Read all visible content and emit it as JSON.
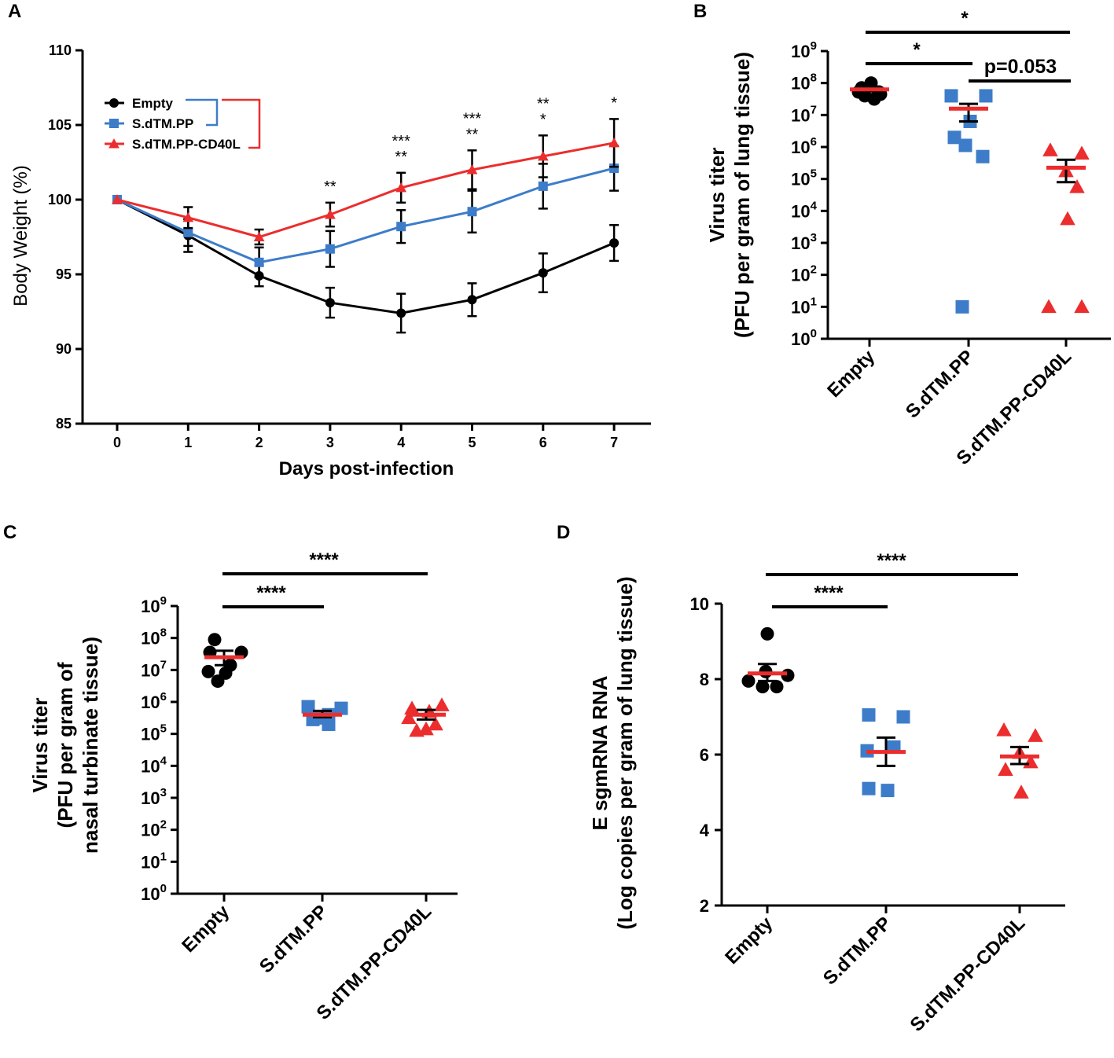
{
  "colors": {
    "black": "#000000",
    "blue": "#3D7CC9",
    "red": "#EC2D2D",
    "mean": "#EC2D2D"
  },
  "chart_data": [
    {
      "panel": "A",
      "type": "line",
      "xlabel": "Days post-infection",
      "ylabel": "Body Weight (%)",
      "ylim": [
        85,
        110
      ],
      "x": [
        0,
        1,
        2,
        3,
        4,
        5,
        6,
        7
      ],
      "x_ticks": [
        "0",
        "1",
        "2",
        "3",
        "4",
        "5",
        "6",
        "7"
      ],
      "y_ticks": [
        "85",
        "90",
        "95",
        "100",
        "105",
        "110"
      ],
      "legend": "top-left",
      "series": [
        {
          "name": "Empty",
          "color": "#000000",
          "marker": "circle",
          "values": [
            100,
            97.6,
            94.9,
            93.1,
            92.4,
            93.3,
            95.1,
            97.1
          ],
          "errors": [
            0,
            1.1,
            0.7,
            1.0,
            1.3,
            1.1,
            1.3,
            1.2
          ]
        },
        {
          "name": "S.dTM.PP",
          "color": "#3D7CC9",
          "marker": "square",
          "values": [
            100,
            97.8,
            95.8,
            96.7,
            98.2,
            99.2,
            100.9,
            102.1
          ],
          "errors": [
            0,
            0.9,
            1.0,
            1.2,
            1.1,
            1.4,
            1.5,
            1.5
          ]
        },
        {
          "name": "S.dTM.PP-CD40L",
          "color": "#EC2D2D",
          "marker": "triangle",
          "values": [
            100,
            98.8,
            97.5,
            99.0,
            100.8,
            102.0,
            102.9,
            103.8
          ],
          "errors": [
            0,
            0.7,
            0.5,
            0.8,
            1.0,
            1.3,
            1.4,
            1.6
          ]
        }
      ],
      "significance": [
        {
          "x": 3,
          "series": "S.dTM.PP-CD40L",
          "label": "**"
        },
        {
          "x": 4,
          "series": "S.dTM.PP-CD40L",
          "label": "***"
        },
        {
          "x": 4,
          "series": "S.dTM.PP",
          "label": "**"
        },
        {
          "x": 5,
          "series": "S.dTM.PP-CD40L",
          "label": "***"
        },
        {
          "x": 5,
          "series": "S.dTM.PP",
          "label": "**"
        },
        {
          "x": 6,
          "series": "S.dTM.PP-CD40L",
          "label": "**"
        },
        {
          "x": 6,
          "series": "S.dTM.PP",
          "label": "*"
        },
        {
          "x": 7,
          "series": "S.dTM.PP-CD40L",
          "label": "*"
        }
      ]
    },
    {
      "panel": "B",
      "type": "scatter",
      "scale": "log10",
      "ylabel": [
        "Virus titer",
        "(PFU per gram of lung tissue)"
      ],
      "ylim_exponent": [
        0,
        9
      ],
      "y_tick_exponents": [
        "0",
        "1",
        "2",
        "3",
        "4",
        "5",
        "6",
        "7",
        "8",
        "9"
      ],
      "categories": [
        "Empty",
        "S.dTM.PP",
        "S.dTM.PP-CD40L"
      ],
      "groups": [
        {
          "name": "Empty",
          "marker": "circle",
          "color": "#000000",
          "values_log10": [
            8.0,
            7.85,
            7.72,
            7.72,
            7.65,
            7.6,
            7.5
          ],
          "mean_log10": 7.8,
          "sem_low_log10": 7.74,
          "sem_high_log10": 7.88
        },
        {
          "name": "S.dTM.PP",
          "marker": "square",
          "color": "#3D7CC9",
          "values_log10": [
            7.6,
            7.6,
            6.8,
            6.3,
            6.05,
            5.7,
            1.0
          ],
          "mean_log10": 7.2,
          "sem_low_log10": 6.8,
          "sem_high_log10": 7.35
        },
        {
          "name": "S.dTM.PP-CD40L",
          "marker": "triangle",
          "color": "#EC2D2D",
          "values_log10": [
            5.9,
            5.8,
            5.25,
            4.75,
            3.75,
            1.0,
            1.0
          ],
          "mean_log10": 5.35,
          "sem_low_log10": 4.9,
          "sem_high_log10": 5.6
        }
      ],
      "brackets": [
        {
          "from": "Empty",
          "to": "S.dTM.PP",
          "label": "*"
        },
        {
          "from": "Empty",
          "to": "S.dTM.PP-CD40L",
          "label": "*"
        },
        {
          "from": "S.dTM.PP",
          "to": "S.dTM.PP-CD40L",
          "label": "p=0.053"
        }
      ]
    },
    {
      "panel": "C",
      "type": "scatter",
      "scale": "log10",
      "ylabel": [
        "Virus titer",
        "(PFU per gram of",
        "nasal turbinate tissue)"
      ],
      "ylim_exponent": [
        0,
        9
      ],
      "y_tick_exponents": [
        "0",
        "1",
        "2",
        "3",
        "4",
        "5",
        "6",
        "7",
        "8",
        "9"
      ],
      "categories": [
        "Empty",
        "S.dTM.PP",
        "S.dTM.PP-CD40L"
      ],
      "groups": [
        {
          "name": "Empty",
          "marker": "circle",
          "color": "#000000",
          "values_log10": [
            7.95,
            7.55,
            7.55,
            7.15,
            6.95,
            6.9,
            6.65
          ],
          "mean_log10": 7.4,
          "sem_low_log10": 7.15,
          "sem_high_log10": 7.6
        },
        {
          "name": "S.dTM.PP",
          "marker": "square",
          "color": "#3D7CC9",
          "values_log10": [
            5.85,
            5.8,
            5.6,
            5.5,
            5.45,
            5.3
          ],
          "mean_log10": 5.6,
          "sem_low_log10": 5.52,
          "sem_high_log10": 5.72
        },
        {
          "name": "S.dTM.PP-CD40L",
          "marker": "triangle",
          "color": "#EC2D2D",
          "values_log10": [
            5.9,
            5.8,
            5.7,
            5.5,
            5.3,
            5.15,
            5.1
          ],
          "mean_log10": 5.6,
          "sem_low_log10": 5.45,
          "sem_high_log10": 5.75
        }
      ],
      "brackets": [
        {
          "from": "Empty",
          "to": "S.dTM.PP",
          "label": "****"
        },
        {
          "from": "Empty",
          "to": "S.dTM.PP-CD40L",
          "label": "****"
        }
      ]
    },
    {
      "panel": "D",
      "type": "scatter",
      "scale": "linear",
      "ylabel": [
        "E sgmRNA RNA",
        "(Log copies per gram of lung tissue)"
      ],
      "ylim": [
        2,
        10
      ],
      "y_ticks": [
        "2",
        "4",
        "6",
        "8",
        "10"
      ],
      "categories": [
        "Empty",
        "S.dTM.PP",
        "S.dTM.PP-CD40L"
      ],
      "groups": [
        {
          "name": "Empty",
          "marker": "circle",
          "color": "#000000",
          "values": [
            9.2,
            8.2,
            8.1,
            7.95,
            7.8,
            7.8
          ],
          "mean": 8.15,
          "sem_low": 7.95,
          "sem_high": 8.4
        },
        {
          "name": "S.dTM.PP",
          "marker": "square",
          "color": "#3D7CC9",
          "values": [
            7.05,
            7.0,
            6.2,
            6.1,
            5.1,
            5.05
          ],
          "mean": 6.07,
          "sem_low": 5.7,
          "sem_high": 6.45
        },
        {
          "name": "S.dTM.PP-CD40L",
          "marker": "triangle",
          "color": "#EC2D2D",
          "values": [
            6.65,
            6.5,
            6.05,
            5.8,
            5.6,
            5.0
          ],
          "mean": 5.95,
          "sem_low": 5.75,
          "sem_high": 6.2
        }
      ],
      "brackets": [
        {
          "from": "Empty",
          "to": "S.dTM.PP",
          "label": "****"
        },
        {
          "from": "Empty",
          "to": "S.dTM.PP-CD40L",
          "label": "****"
        }
      ]
    }
  ]
}
